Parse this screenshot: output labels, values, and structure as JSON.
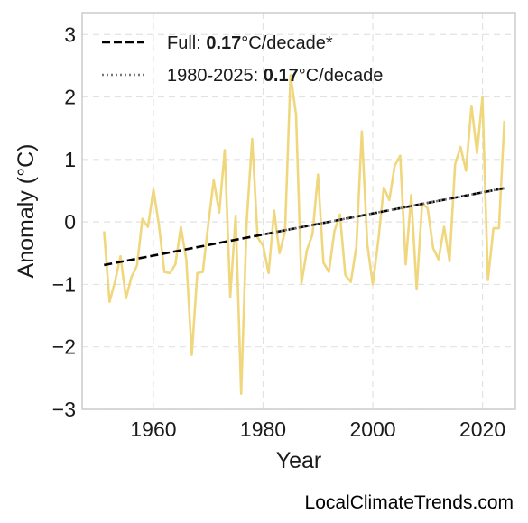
{
  "chart_data": {
    "type": "line",
    "xlabel": "Year",
    "ylabel": "Anomaly (°C)",
    "xlim": [
      1947,
      2026
    ],
    "ylim": [
      -3,
      3.35
    ],
    "xticks": [
      1960,
      1980,
      2000,
      2020
    ],
    "yticks": [
      -3,
      -2,
      -1,
      0,
      1,
      2,
      3
    ],
    "grid": true,
    "legend_position": "top-left",
    "series": [
      {
        "role": "annual",
        "color": "#f0d77e",
        "x": [
          1951,
          1952,
          1953,
          1954,
          1955,
          1956,
          1957,
          1958,
          1959,
          1960,
          1961,
          1962,
          1963,
          1964,
          1965,
          1966,
          1967,
          1968,
          1969,
          1970,
          1971,
          1972,
          1973,
          1974,
          1975,
          1976,
          1977,
          1978,
          1979,
          1980,
          1981,
          1982,
          1983,
          1984,
          1985,
          1986,
          1987,
          1988,
          1989,
          1990,
          1991,
          1992,
          1993,
          1994,
          1995,
          1996,
          1997,
          1998,
          1999,
          2000,
          2001,
          2002,
          2003,
          2004,
          2005,
          2006,
          2007,
          2008,
          2009,
          2010,
          2011,
          2012,
          2013,
          2014,
          2015,
          2016,
          2017,
          2018,
          2019,
          2020,
          2021,
          2022,
          2023,
          2024
        ],
        "y": [
          -0.15,
          -1.28,
          -0.95,
          -0.55,
          -1.22,
          -0.88,
          -0.7,
          0.05,
          -0.08,
          0.52,
          -0.05,
          -0.8,
          -0.82,
          -0.68,
          -0.08,
          -0.6,
          -2.13,
          -0.82,
          -0.8,
          -0.05,
          0.67,
          0.15,
          1.15,
          -1.2,
          0.1,
          -2.75,
          0.0,
          1.33,
          -0.25,
          -0.38,
          -0.82,
          0.18,
          -0.5,
          -0.15,
          2.35,
          1.72,
          -0.98,
          -0.45,
          -0.2,
          0.76,
          -0.65,
          -0.8,
          -0.15,
          0.12,
          -0.85,
          -0.96,
          -0.4,
          1.45,
          -0.35,
          -1.0,
          -0.3,
          0.55,
          0.35,
          0.9,
          1.06,
          -0.68,
          0.43,
          -1.08,
          0.3,
          0.22,
          -0.42,
          -0.6,
          -0.08,
          -0.63,
          0.92,
          1.2,
          0.82,
          1.86,
          1.1,
          2.0,
          -0.93,
          -0.1,
          -0.1,
          1.62
        ]
      },
      {
        "role": "trend-full",
        "name": "Full:",
        "name_rate": "0.17",
        "name_suffix": "°C/decade*",
        "color": "#000000",
        "style": "dashed",
        "x": [
          1951,
          2024
        ],
        "y": [
          -0.69,
          0.54
        ]
      },
      {
        "role": "trend-recent",
        "name": "1980-2025:",
        "name_rate": "0.17",
        "name_suffix": "°C/decade",
        "color": "#777777",
        "style": "dotted",
        "x": [
          1980,
          2024
        ],
        "y": [
          -0.2,
          0.54
        ]
      }
    ]
  },
  "watermark": "LocalClimateTrends.com"
}
